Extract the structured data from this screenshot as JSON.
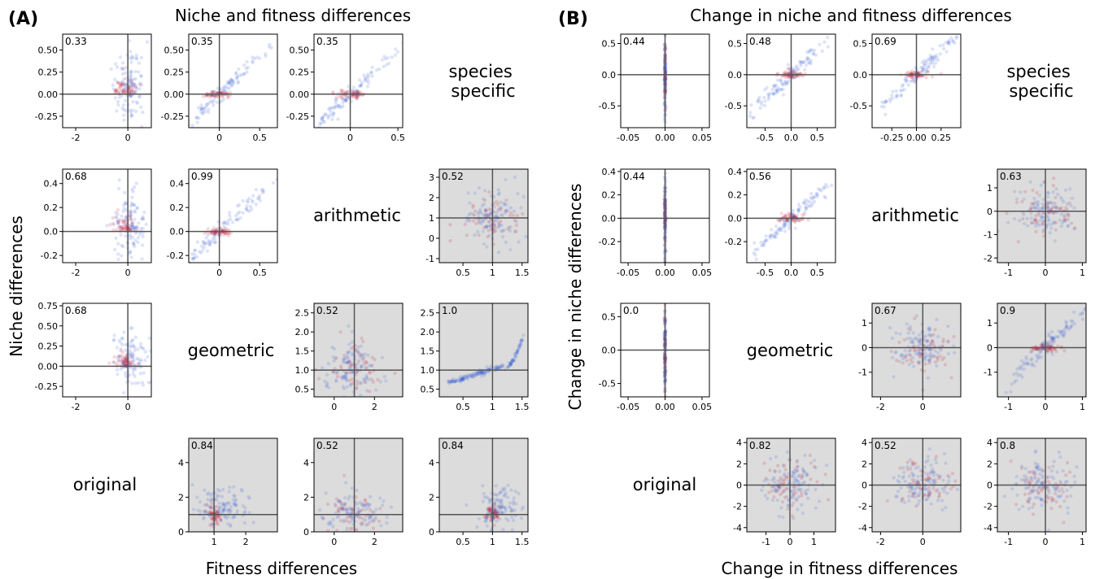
{
  "colors": {
    "blue": "#3b5bd6",
    "red": "#c8102e",
    "shaded": "#dcdcdc",
    "axis": "#555555"
  },
  "panelA": {
    "letter": "(A)",
    "title": "Niche and fitness differences",
    "xlabel": "Fitness differences",
    "ylabel": "Niche differences",
    "row_labels": {
      "species_specific": "species\nspecific",
      "arithmetic": "arithmetic",
      "geometric": "geometric",
      "original": "original"
    }
  },
  "panelB": {
    "letter": "(B)",
    "title": "Change in niche and fitness differences",
    "xlabel": "Change in fitness differences",
    "ylabel": "Change in niche differences",
    "row_labels": {
      "species_specific": "species\nspecific",
      "arithmetic": "arithmetic",
      "geometric": "geometric",
      "original": "original"
    }
  },
  "chart_data": [
    {
      "panel": "A",
      "row": 0,
      "col": 0,
      "type": "scatter",
      "corr": "0.33",
      "shaded": false,
      "xlim": [
        -2.5,
        0.9
      ],
      "ylim": [
        -0.38,
        0.68
      ],
      "xticks": [
        -2,
        0
      ],
      "yticks": [
        -0.25,
        0.0,
        0.25,
        0.5
      ],
      "ytick_labels": [
        "-0.25",
        "0.00",
        "0.25",
        "0.50"
      ],
      "cross": [
        0,
        0
      ],
      "pattern": "vert"
    },
    {
      "panel": "A",
      "row": 0,
      "col": 1,
      "type": "scatter",
      "corr": "0.35",
      "shaded": false,
      "xlim": [
        -0.38,
        0.72
      ],
      "ylim": [
        -0.38,
        0.68
      ],
      "xticks": [
        0.0,
        0.5
      ],
      "yticks": [
        -0.25,
        0.0,
        0.25,
        0.5
      ],
      "ytick_labels": [
        "-0.25",
        "0.00",
        "0.25",
        "0.50"
      ],
      "cross": [
        0,
        0
      ],
      "pattern": "diag"
    },
    {
      "panel": "A",
      "row": 0,
      "col": 2,
      "type": "scatter",
      "corr": "0.35",
      "shaded": false,
      "xlim": [
        -0.38,
        0.55
      ],
      "ylim": [
        -0.38,
        0.68
      ],
      "xticks": [
        0.0,
        0.5
      ],
      "yticks": [
        -0.25,
        0.0,
        0.25,
        0.5
      ],
      "ytick_labels": [
        "-0.25",
        "0.00",
        "0.25",
        "0.50"
      ],
      "cross": [
        0,
        0
      ],
      "pattern": "diag"
    },
    {
      "panel": "A",
      "row": 1,
      "col": 0,
      "type": "scatter",
      "corr": "0.68",
      "shaded": false,
      "xlim": [
        -2.5,
        0.9
      ],
      "ylim": [
        -0.26,
        0.52
      ],
      "xticks": [
        -2,
        0
      ],
      "yticks": [
        -0.2,
        0.0,
        0.2,
        0.4
      ],
      "ytick_labels": [
        "-0.2",
        "0.0",
        "0.2",
        "0.4"
      ],
      "cross": [
        0,
        0
      ],
      "pattern": "vert"
    },
    {
      "panel": "A",
      "row": 1,
      "col": 1,
      "type": "scatter",
      "corr": "0.99",
      "shaded": false,
      "xlim": [
        -0.38,
        0.72
      ],
      "ylim": [
        -0.26,
        0.52
      ],
      "xticks": [
        0.0,
        0.5
      ],
      "yticks": [
        -0.2,
        0.0,
        0.2,
        0.4
      ],
      "ytick_labels": [
        "-0.2",
        "0.0",
        "0.2",
        "0.4"
      ],
      "cross": [
        0,
        0
      ],
      "pattern": "diag"
    },
    {
      "panel": "A",
      "row": 1,
      "col": 3,
      "type": "scatter",
      "corr": "0.52",
      "shaded": true,
      "xlim": [
        0.1,
        1.6
      ],
      "ylim": [
        -1.2,
        3.4
      ],
      "xticks": [
        0.5,
        1.0,
        1.5
      ],
      "yticks": [
        -1,
        0,
        1,
        2,
        3
      ],
      "ytick_labels": [
        "-1",
        "0",
        "1",
        "2",
        "3"
      ],
      "cross": [
        1,
        1
      ],
      "pattern": "cloud"
    },
    {
      "panel": "A",
      "row": 2,
      "col": 0,
      "type": "scatter",
      "corr": "0.68",
      "shaded": false,
      "xlim": [
        -2.5,
        0.9
      ],
      "ylim": [
        -0.38,
        0.78
      ],
      "xticks": [
        -2,
        0
      ],
      "yticks": [
        -0.25,
        0.0,
        0.25,
        0.5,
        0.75
      ],
      "ytick_labels": [
        "-0.25",
        "0.00",
        "0.25",
        "0.50",
        "0.75"
      ],
      "cross": [
        0,
        0
      ],
      "pattern": "vert"
    },
    {
      "panel": "A",
      "row": 2,
      "col": 2,
      "type": "scatter",
      "corr": "0.52",
      "shaded": true,
      "xlim": [
        -1.0,
        3.4
      ],
      "ylim": [
        0.3,
        2.75
      ],
      "xticks": [
        0,
        2
      ],
      "yticks": [
        0.5,
        1.0,
        1.5,
        2.0,
        2.5
      ],
      "ytick_labels": [
        "0.5",
        "1.0",
        "1.5",
        "2.0",
        "2.5"
      ],
      "cross": [
        1,
        1
      ],
      "pattern": "cloud"
    },
    {
      "panel": "A",
      "row": 2,
      "col": 3,
      "type": "scatter",
      "corr": "1.0",
      "shaded": true,
      "xlim": [
        0.1,
        1.6
      ],
      "ylim": [
        0.3,
        2.75
      ],
      "xticks": [
        0.5,
        1.0,
        1.5
      ],
      "yticks": [
        0.5,
        1.0,
        1.5,
        2.0,
        2.5
      ],
      "ytick_labels": [
        "0.5",
        "1.0",
        "1.5",
        "2.0",
        "2.5"
      ],
      "cross": [
        1,
        1
      ],
      "pattern": "curve"
    },
    {
      "panel": "A",
      "row": 3,
      "col": 1,
      "type": "scatter",
      "corr": "0.84",
      "shaded": true,
      "xlim": [
        0.2,
        3.0
      ],
      "ylim": [
        0,
        5.4
      ],
      "xticks": [
        1,
        2
      ],
      "yticks": [
        0,
        2,
        4
      ],
      "ytick_labels": [
        "0",
        "2",
        "4"
      ],
      "cross": [
        1,
        1
      ],
      "pattern": "cloudpos"
    },
    {
      "panel": "A",
      "row": 3,
      "col": 2,
      "type": "scatter",
      "corr": "0.52",
      "shaded": true,
      "xlim": [
        -1.0,
        3.4
      ],
      "ylim": [
        0,
        5.4
      ],
      "xticks": [
        0,
        2
      ],
      "yticks": [
        0,
        2,
        4
      ],
      "ytick_labels": [
        "0",
        "2",
        "4"
      ],
      "cross": [
        1,
        1
      ],
      "pattern": "cloud"
    },
    {
      "panel": "A",
      "row": 3,
      "col": 3,
      "type": "scatter",
      "corr": "0.84",
      "shaded": true,
      "xlim": [
        0.1,
        1.6
      ],
      "ylim": [
        0,
        5.4
      ],
      "xticks": [
        0.5,
        1.0,
        1.5
      ],
      "yticks": [
        0,
        2,
        4
      ],
      "ytick_labels": [
        "0",
        "2",
        "4"
      ],
      "cross": [
        1,
        1
      ],
      "pattern": "cloudpos"
    },
    {
      "panel": "B",
      "row": 0,
      "col": 0,
      "type": "scatter",
      "corr": "0.44",
      "shaded": false,
      "xlim": [
        -0.06,
        0.06
      ],
      "ylim": [
        -0.85,
        0.65
      ],
      "xticks": [
        -0.05,
        0.0,
        0.05
      ],
      "xtick_labels": [
        "-0.05",
        "0.00",
        "0.05"
      ],
      "yticks": [
        -0.5,
        0.0,
        0.5
      ],
      "ytick_labels": [
        "-0.5",
        "0.0",
        "0.5"
      ],
      "cross": [
        0,
        0
      ],
      "pattern": "line"
    },
    {
      "panel": "B",
      "row": 0,
      "col": 1,
      "type": "scatter",
      "corr": "0.48",
      "shaded": false,
      "xlim": [
        -0.85,
        0.85
      ],
      "ylim": [
        -0.85,
        0.65
      ],
      "xticks": [
        -0.5,
        0.0,
        0.5
      ],
      "xtick_labels": [
        "-0.5",
        "0.0",
        "0.5"
      ],
      "yticks": [
        -0.5,
        0.0,
        0.5
      ],
      "ytick_labels": [
        "-0.5",
        "0.0",
        "0.5"
      ],
      "cross": [
        0,
        0
      ],
      "pattern": "diag"
    },
    {
      "panel": "B",
      "row": 0,
      "col": 2,
      "type": "scatter",
      "corr": "0.69",
      "shaded": false,
      "xlim": [
        -0.45,
        0.45
      ],
      "ylim": [
        -0.85,
        0.65
      ],
      "xticks": [
        -0.25,
        0.0,
        0.25
      ],
      "xtick_labels": [
        "-0.25",
        "0.00",
        "0.25"
      ],
      "yticks": [
        -0.5,
        0.0,
        0.5
      ],
      "ytick_labels": [
        "-0.5",
        "0.0",
        "0.5"
      ],
      "cross": [
        0,
        0
      ],
      "pattern": "diag"
    },
    {
      "panel": "B",
      "row": 1,
      "col": 0,
      "type": "scatter",
      "corr": "0.44",
      "shaded": false,
      "xlim": [
        -0.06,
        0.06
      ],
      "ylim": [
        -0.38,
        0.42
      ],
      "xticks": [
        -0.05,
        0.0,
        0.05
      ],
      "xtick_labels": [
        "-0.05",
        "0.00",
        "0.05"
      ],
      "yticks": [
        -0.2,
        0.0,
        0.2,
        0.4
      ],
      "ytick_labels": [
        "-0.2",
        "0.0",
        "0.2",
        "0.4"
      ],
      "cross": [
        0,
        0
      ],
      "pattern": "line"
    },
    {
      "panel": "B",
      "row": 1,
      "col": 1,
      "type": "scatter",
      "corr": "0.56",
      "shaded": false,
      "xlim": [
        -0.85,
        0.85
      ],
      "ylim": [
        -0.38,
        0.42
      ],
      "xticks": [
        -0.5,
        0.0,
        0.5
      ],
      "xtick_labels": [
        "-0.5",
        "0.0",
        "0.5"
      ],
      "yticks": [
        -0.2,
        0.0,
        0.2,
        0.4
      ],
      "ytick_labels": [
        "-0.2",
        "0.0",
        "0.2",
        "0.4"
      ],
      "cross": [
        0,
        0
      ],
      "pattern": "diag"
    },
    {
      "panel": "B",
      "row": 1,
      "col": 3,
      "type": "scatter",
      "corr": "0.63",
      "shaded": true,
      "xlim": [
        -1.3,
        1.1
      ],
      "ylim": [
        -2.2,
        1.8
      ],
      "xticks": [
        -1,
        0,
        1
      ],
      "xtick_labels": [
        "-1",
        "0",
        "1"
      ],
      "yticks": [
        -2,
        -1,
        0,
        1
      ],
      "ytick_labels": [
        "-2",
        "-1",
        "0",
        "1"
      ],
      "cross": [
        0,
        0
      ],
      "pattern": "cloud"
    },
    {
      "panel": "B",
      "row": 2,
      "col": 0,
      "type": "scatter",
      "corr": "0.0",
      "shaded": false,
      "xlim": [
        -0.06,
        0.06
      ],
      "ylim": [
        -0.7,
        0.7
      ],
      "xticks": [
        -0.05,
        0.0,
        0.05
      ],
      "xtick_labels": [
        "-0.05",
        "0.00",
        "0.05"
      ],
      "yticks": [
        -0.5,
        0.0,
        0.5
      ],
      "ytick_labels": [
        "-0.5",
        "0.0",
        "0.5"
      ],
      "cross": [
        0,
        0
      ],
      "pattern": "line"
    },
    {
      "panel": "B",
      "row": 2,
      "col": 2,
      "type": "scatter",
      "corr": "0.67",
      "shaded": true,
      "xlim": [
        -2.4,
        1.8
      ],
      "ylim": [
        -2.0,
        1.8
      ],
      "xticks": [
        -2,
        0
      ],
      "xtick_labels": [
        "-2",
        "0"
      ],
      "yticks": [
        -1,
        0,
        1
      ],
      "ytick_labels": [
        "-1",
        "0",
        "1"
      ],
      "cross": [
        0,
        0
      ],
      "pattern": "cloud"
    },
    {
      "panel": "B",
      "row": 2,
      "col": 3,
      "type": "scatter",
      "corr": "0.9",
      "shaded": true,
      "xlim": [
        -1.3,
        1.1
      ],
      "ylim": [
        -2.0,
        1.8
      ],
      "xticks": [
        -1,
        0,
        1
      ],
      "xtick_labels": [
        "-1",
        "0",
        "1"
      ],
      "yticks": [
        -1,
        0,
        1
      ],
      "ytick_labels": [
        "-1",
        "0",
        "1"
      ],
      "cross": [
        0,
        0
      ],
      "pattern": "diag"
    },
    {
      "panel": "B",
      "row": 3,
      "col": 1,
      "type": "scatter",
      "corr": "0.82",
      "shaded": true,
      "xlim": [
        -1.8,
        1.9
      ],
      "ylim": [
        -4.4,
        4.4
      ],
      "xticks": [
        -1,
        0,
        1
      ],
      "xtick_labels": [
        "-1",
        "0",
        "1"
      ],
      "yticks": [
        -4,
        -2,
        0,
        2,
        4
      ],
      "ytick_labels": [
        "-4",
        "-2",
        "0",
        "2",
        "4"
      ],
      "cross": [
        0,
        0
      ],
      "pattern": "cloud"
    },
    {
      "panel": "B",
      "row": 3,
      "col": 2,
      "type": "scatter",
      "corr": "0.52",
      "shaded": true,
      "xlim": [
        -2.4,
        1.8
      ],
      "ylim": [
        -4.4,
        4.4
      ],
      "xticks": [
        -2,
        0
      ],
      "xtick_labels": [
        "-2",
        "0"
      ],
      "yticks": [
        -4,
        -2,
        0,
        2,
        4
      ],
      "ytick_labels": [
        "-4",
        "-2",
        "0",
        "2",
        "4"
      ],
      "cross": [
        0,
        0
      ],
      "pattern": "cloud"
    },
    {
      "panel": "B",
      "row": 3,
      "col": 3,
      "type": "scatter",
      "corr": "0.8",
      "shaded": true,
      "xlim": [
        -1.3,
        1.1
      ],
      "ylim": [
        -4.4,
        4.4
      ],
      "xticks": [
        -1,
        0,
        1
      ],
      "xtick_labels": [
        "-1",
        "0",
        "1"
      ],
      "yticks": [
        -4,
        -2,
        0,
        2,
        4
      ],
      "ytick_labels": [
        "-4",
        "-2",
        "0",
        "2",
        "4"
      ],
      "cross": [
        0,
        0
      ],
      "pattern": "cloud"
    }
  ]
}
